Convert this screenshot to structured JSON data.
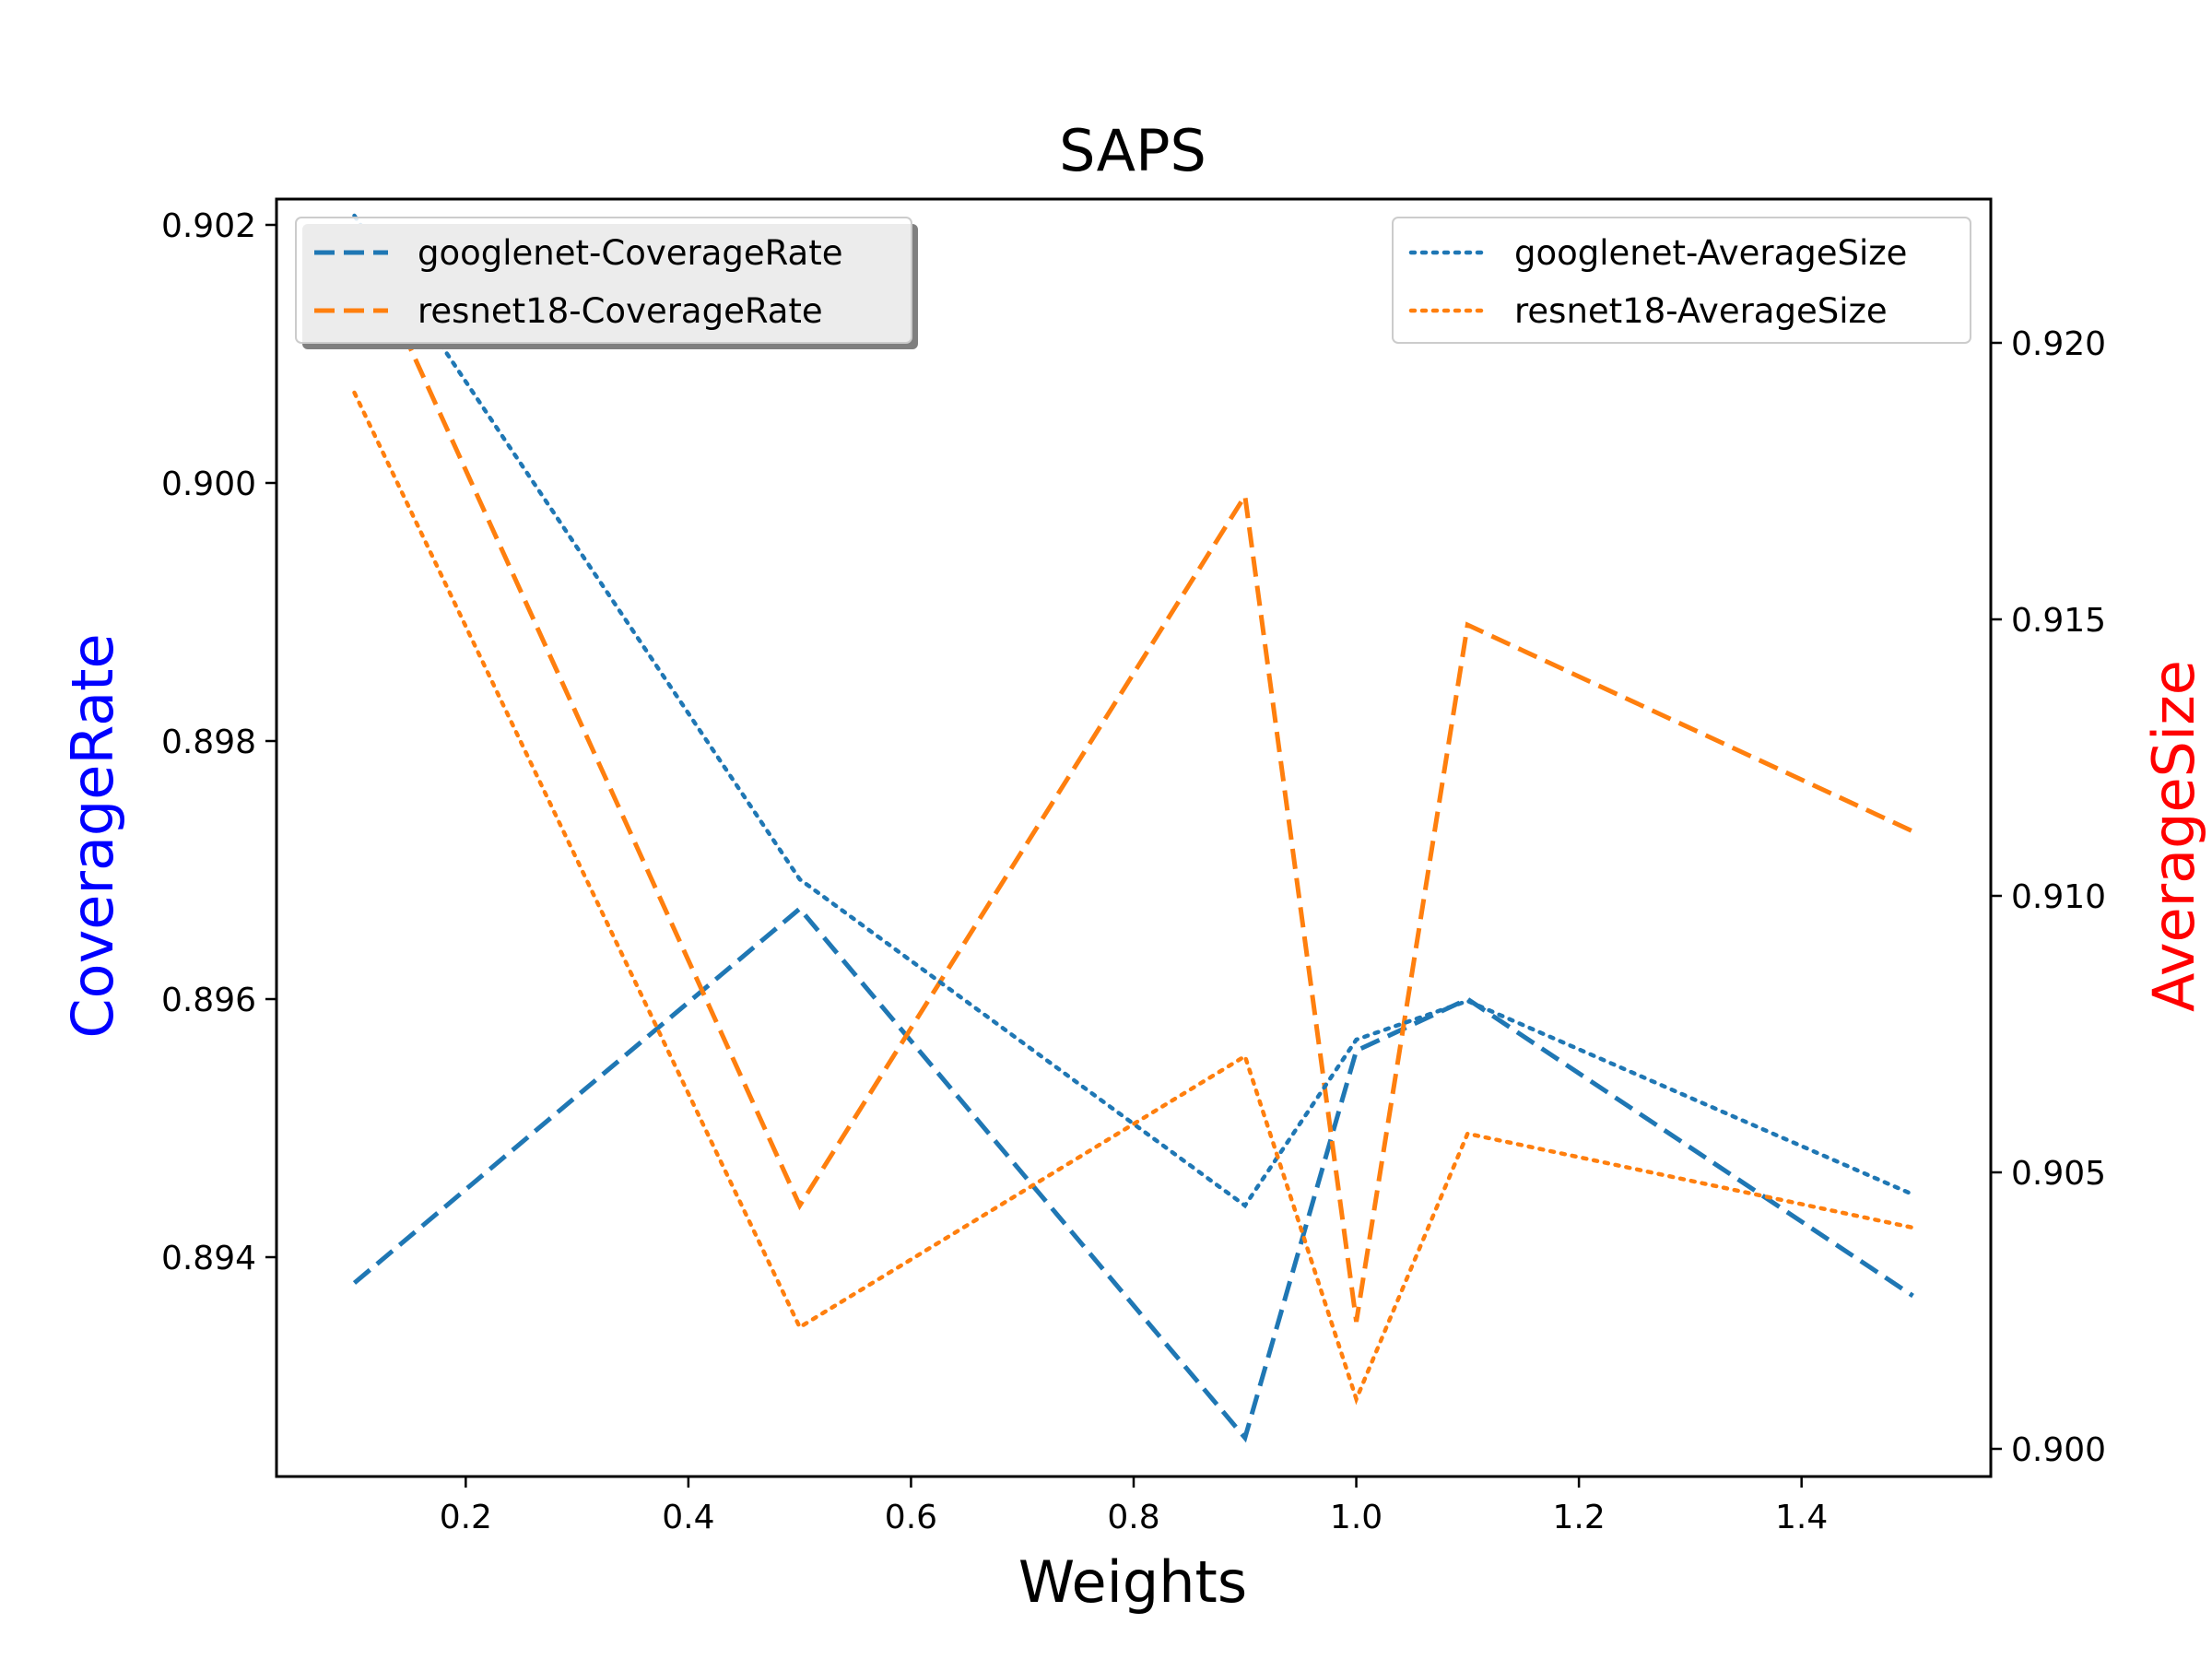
{
  "chart_data": {
    "type": "line",
    "title": "SAPS",
    "xlabel": "Weights",
    "ylabel_left": "CoverageRate",
    "ylabel_right": "AverageSize",
    "ylabel_left_color": "#0000ff",
    "ylabel_right_color": "#ff0000",
    "xlim": [
      0.03,
      1.57
    ],
    "ylim_left": [
      0.8923,
      0.9022
    ],
    "ylim_right": [
      0.8995,
      0.9226
    ],
    "x_ticks": [
      {
        "value": 0.2,
        "label": "0.2"
      },
      {
        "value": 0.4,
        "label": "0.4"
      },
      {
        "value": 0.6,
        "label": "0.6"
      },
      {
        "value": 0.8,
        "label": "0.8"
      },
      {
        "value": 1.0,
        "label": "1.0"
      },
      {
        "value": 1.2,
        "label": "1.2"
      },
      {
        "value": 1.4,
        "label": "1.4"
      }
    ],
    "y_left_ticks": [
      {
        "value": 0.894,
        "label": "0.894"
      },
      {
        "value": 0.896,
        "label": "0.896"
      },
      {
        "value": 0.898,
        "label": "0.898"
      },
      {
        "value": 0.9,
        "label": "0.900"
      },
      {
        "value": 0.902,
        "label": "0.902"
      }
    ],
    "y_right_ticks": [
      {
        "value": 0.9,
        "label": "0.900"
      },
      {
        "value": 0.905,
        "label": "0.905"
      },
      {
        "value": 0.91,
        "label": "0.910"
      },
      {
        "value": 0.915,
        "label": "0.915"
      },
      {
        "value": 0.92,
        "label": "0.920"
      }
    ],
    "x": [
      0.1,
      0.5,
      0.9,
      1.0,
      1.1,
      1.5
    ],
    "series": [
      {
        "name": "googlenet-CoverageRate",
        "axis": "left",
        "style": "dashed",
        "color": "#1f77b4",
        "values": [
          0.8938,
          0.8967,
          0.8926,
          0.8956,
          0.896,
          0.8937
        ]
      },
      {
        "name": "resnet18-CoverageRate",
        "axis": "left",
        "style": "dashed",
        "color": "#ff7f0e",
        "values": [
          0.902,
          0.8944,
          0.8999,
          0.8935,
          0.8989,
          0.8973
        ]
      },
      {
        "name": "googlenet-AverageSize",
        "axis": "right",
        "style": "dotted",
        "color": "#1f77b4",
        "values": [
          0.9223,
          0.9103,
          0.9044,
          0.9074,
          0.9081,
          0.9046
        ]
      },
      {
        "name": "resnet18-AverageSize",
        "axis": "right",
        "style": "dotted",
        "color": "#ff7f0e",
        "values": [
          0.9191,
          0.9022,
          0.9071,
          0.9009,
          0.9057,
          0.904
        ]
      }
    ],
    "legend_left": {
      "location": "upper-left",
      "entries": [
        "googlenet-CoverageRate",
        "resnet18-CoverageRate"
      ]
    },
    "legend_right": {
      "location": "upper-right",
      "entries": [
        "googlenet-AverageSize",
        "resnet18-AverageSize"
      ]
    },
    "grid": false
  }
}
